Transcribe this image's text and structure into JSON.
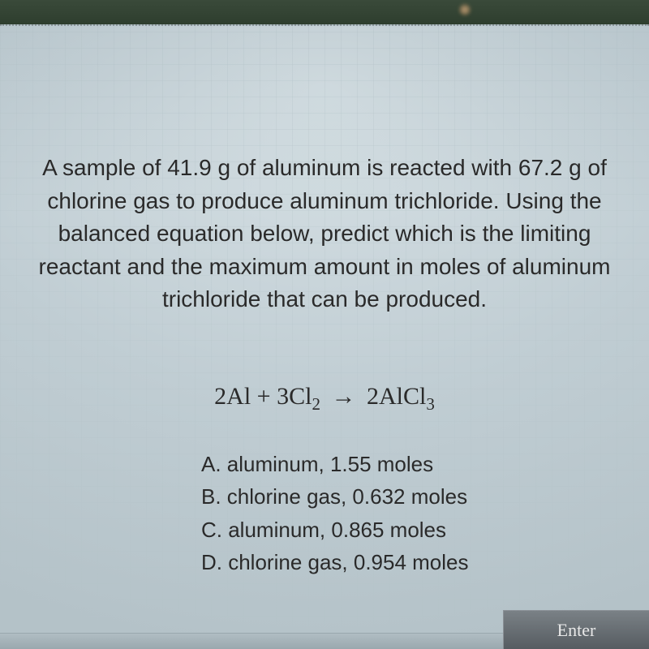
{
  "background": {
    "top_color": "#2a3a2a",
    "card_bg_color": "#c5d0d5",
    "grid_color": "#b4c5ca",
    "bokeh_color": "rgba(255,200,150,0.7)"
  },
  "question": {
    "text": "A sample of 41.9 g of aluminum is reacted with 67.2 g of chlorine gas to produce aluminum trichloride. Using the balanced equation below, predict which is the limiting reactant and the maximum amount in moles of aluminum trichloride that can be produced.",
    "font_size": 28,
    "color": "#2a2a2a"
  },
  "equation": {
    "lhs_coef1": "2",
    "lhs_sym1": "Al",
    "plus": " + ",
    "lhs_coef2": "3",
    "lhs_sym2": "Cl",
    "lhs_sub2": "2",
    "arrow": "→",
    "rhs_coef1": "2",
    "rhs_sym1": "AlCl",
    "rhs_sub1": "3",
    "font_size": 30
  },
  "options": {
    "A": "A. aluminum, 1.55 moles",
    "B": "B. chlorine gas, 0.632 moles",
    "C": "C. aluminum, 0.865 moles",
    "D": "D. chlorine gas, 0.954 moles",
    "font_size": 26
  },
  "enter": {
    "label": "Enter",
    "bg": "#6a7176",
    "color": "#e8e8e8"
  }
}
